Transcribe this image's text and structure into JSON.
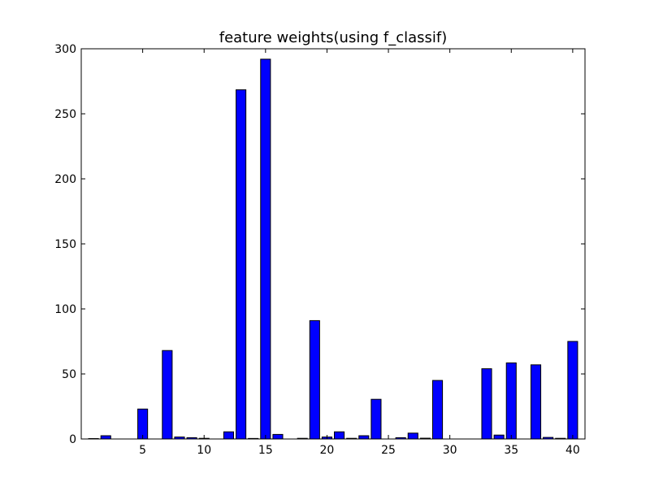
{
  "chart_data": {
    "type": "bar",
    "title": "feature weights(using f_classif)",
    "xlabel": "",
    "ylabel": "",
    "x": [
      1,
      2,
      3,
      4,
      5,
      6,
      7,
      8,
      9,
      10,
      11,
      12,
      13,
      14,
      15,
      16,
      17,
      18,
      19,
      20,
      21,
      22,
      23,
      24,
      25,
      26,
      27,
      28,
      29,
      30,
      31,
      32,
      33,
      34,
      35,
      36,
      37,
      38,
      39,
      40
    ],
    "values": [
      0.3,
      2.5,
      0,
      0,
      23,
      0,
      68,
      1.5,
      1,
      0.5,
      0,
      5.5,
      268.5,
      0.4,
      292,
      3.5,
      0,
      0.5,
      91,
      1.5,
      5.5,
      0.5,
      2.5,
      30.5,
      0,
      1,
      4.5,
      0.6,
      45,
      0,
      0,
      0,
      54,
      3,
      58.5,
      0,
      57,
      1.2,
      0.5,
      75
    ],
    "xlim": [
      0,
      41
    ],
    "ylim": [
      0,
      300
    ],
    "xticks": [
      5,
      10,
      15,
      20,
      25,
      30,
      35,
      40
    ],
    "yticks": [
      0,
      50,
      100,
      150,
      200,
      250,
      300
    ],
    "bar_color": "#0000ff",
    "edge_color": "#000000",
    "grid": false,
    "legend": "none"
  }
}
